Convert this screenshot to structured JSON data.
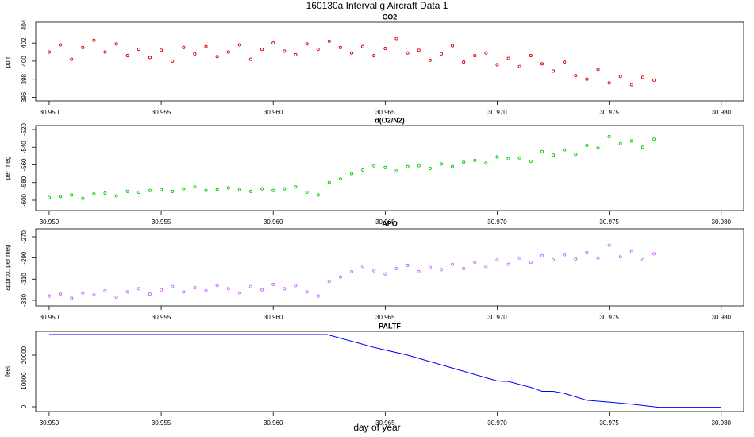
{
  "title": "160130a   Interval g Aircraft Data 1",
  "xlabel": "day of year",
  "chart_data": [
    {
      "type": "scatter",
      "title": "CO2",
      "ylabel": "ppm",
      "color": "#dd0000",
      "x": [
        30.95,
        30.9505,
        30.951,
        30.9515,
        30.952,
        30.9525,
        30.953,
        30.9535,
        30.954,
        30.9545,
        30.955,
        30.9555,
        30.956,
        30.9565,
        30.957,
        30.9575,
        30.958,
        30.9585,
        30.959,
        30.9595,
        30.96,
        30.9605,
        30.961,
        30.9615,
        30.962,
        30.9625,
        30.963,
        30.9635,
        30.964,
        30.9645,
        30.965,
        30.9655,
        30.966,
        30.9665,
        30.967,
        30.9675,
        30.968,
        30.9685,
        30.969,
        30.9695,
        30.97,
        30.9705,
        30.971,
        30.9715,
        30.972,
        30.9725,
        30.973,
        30.9735,
        30.974,
        30.9745,
        30.975,
        30.9755,
        30.976,
        30.9765,
        30.977
      ],
      "values": [
        401.0,
        401.8,
        400.2,
        401.5,
        402.3,
        401.0,
        401.9,
        400.6,
        401.3,
        400.4,
        401.2,
        400.0,
        401.5,
        400.8,
        401.6,
        400.5,
        401.0,
        401.8,
        400.2,
        401.3,
        402.0,
        401.1,
        400.7,
        401.9,
        401.3,
        402.2,
        401.5,
        400.9,
        401.6,
        400.6,
        401.4,
        402.5,
        400.9,
        401.2,
        400.1,
        400.8,
        401.7,
        399.9,
        400.6,
        400.9,
        399.6,
        400.3,
        399.4,
        400.6,
        399.7,
        398.9,
        399.9,
        398.4,
        398.0,
        399.1,
        397.6,
        398.3,
        397.4,
        398.2,
        397.9
      ],
      "xlim": [
        30.9494,
        30.981
      ],
      "ylim": [
        395.6,
        404.3
      ],
      "xticks": [
        {
          "value": 30.95,
          "label": "30.950"
        },
        {
          "value": 30.955,
          "label": "30.955"
        },
        {
          "value": 30.96,
          "label": "30.960"
        },
        {
          "value": 30.965,
          "label": "30.965"
        },
        {
          "value": 30.97,
          "label": "30.970"
        },
        {
          "value": 30.975,
          "label": "30.975"
        },
        {
          "value": 30.98,
          "label": "30.980"
        }
      ],
      "yticks": [
        396,
        398,
        400,
        402,
        404
      ]
    },
    {
      "type": "scatter",
      "title": "d(O2/N2)",
      "ylabel": "per meg",
      "color": "#00cc00",
      "x": [
        30.95,
        30.9505,
        30.951,
        30.9515,
        30.952,
        30.9525,
        30.953,
        30.9535,
        30.954,
        30.9545,
        30.955,
        30.9555,
        30.956,
        30.9565,
        30.957,
        30.9575,
        30.958,
        30.9585,
        30.959,
        30.9595,
        30.96,
        30.9605,
        30.961,
        30.9615,
        30.962,
        30.9625,
        30.963,
        30.9635,
        30.964,
        30.9645,
        30.965,
        30.9655,
        30.966,
        30.9665,
        30.967,
        30.9675,
        30.968,
        30.9685,
        30.969,
        30.9695,
        30.97,
        30.9705,
        30.971,
        30.9715,
        30.972,
        30.9725,
        30.973,
        30.9735,
        30.974,
        30.9745,
        30.975,
        30.9755,
        30.976,
        30.9765,
        30.977
      ],
      "values": [
        -597,
        -596,
        -594,
        -598,
        -593,
        -592,
        -595,
        -590,
        -591,
        -589,
        -588,
        -590,
        -587,
        -585,
        -589,
        -588,
        -586,
        -588,
        -590,
        -587,
        -589,
        -587,
        -585,
        -591,
        -594,
        -580,
        -576,
        -570,
        -566,
        -561,
        -563,
        -567,
        -562,
        -561,
        -564,
        -559,
        -562,
        -557,
        -555,
        -558,
        -551,
        -553,
        -552,
        -556,
        -545,
        -549,
        -543,
        -548,
        -538,
        -541,
        -528,
        -536,
        -533,
        -540,
        -531
      ],
      "xlim": [
        30.9494,
        30.981
      ],
      "ylim": [
        -611.7,
        -515.5
      ],
      "xticks": [
        {
          "value": 30.95,
          "label": "30.950"
        },
        {
          "value": 30.955,
          "label": "30.955"
        },
        {
          "value": 30.96,
          "label": "30.960"
        },
        {
          "value": 30.965,
          "label": "30.965"
        },
        {
          "value": 30.97,
          "label": "30.970"
        },
        {
          "value": 30.975,
          "label": "30.975"
        },
        {
          "value": 30.98,
          "label": "30.980"
        }
      ],
      "yticks": [
        -600,
        -580,
        -560,
        -540,
        -520
      ]
    },
    {
      "type": "scatter",
      "title": "APO",
      "ylabel": "approx. per meg",
      "color": "#cc66ff",
      "x": [
        30.95,
        30.9505,
        30.951,
        30.9515,
        30.952,
        30.9525,
        30.953,
        30.9535,
        30.954,
        30.9545,
        30.955,
        30.9555,
        30.956,
        30.9565,
        30.957,
        30.9575,
        30.958,
        30.9585,
        30.959,
        30.9595,
        30.96,
        30.9605,
        30.961,
        30.9615,
        30.962,
        30.9625,
        30.963,
        30.9635,
        30.964,
        30.9645,
        30.965,
        30.9655,
        30.966,
        30.9665,
        30.967,
        30.9675,
        30.968,
        30.9685,
        30.969,
        30.9695,
        30.97,
        30.9705,
        30.971,
        30.9715,
        30.972,
        30.9725,
        30.973,
        30.9735,
        30.974,
        30.9745,
        30.975,
        30.9755,
        30.976,
        30.9765,
        30.977
      ],
      "values": [
        -326,
        -324,
        -328,
        -323,
        -325,
        -321,
        -327,
        -322,
        -319,
        -324,
        -320,
        -317,
        -322,
        -318,
        -321,
        -316,
        -319,
        -323,
        -317,
        -320,
        -315,
        -319,
        -316,
        -322,
        -326,
        -312,
        -308,
        -303,
        -298,
        -302,
        -305,
        -300,
        -297,
        -303,
        -299,
        -301,
        -296,
        -300,
        -294,
        -298,
        -292,
        -296,
        -290,
        -294,
        -288,
        -292,
        -287,
        -291,
        -285,
        -290,
        -278,
        -289,
        -284,
        -292,
        -286
      ],
      "xlim": [
        30.9494,
        30.981
      ],
      "ylim": [
        -335.3,
        -262.5
      ],
      "xticks": [
        {
          "value": 30.95,
          "label": "30.950"
        },
        {
          "value": 30.955,
          "label": "30.955"
        },
        {
          "value": 30.96,
          "label": "30.960"
        },
        {
          "value": 30.965,
          "label": "30.965"
        },
        {
          "value": 30.97,
          "label": "30.970"
        },
        {
          "value": 30.975,
          "label": "30.975"
        },
        {
          "value": 30.98,
          "label": "30.980"
        }
      ],
      "yticks": [
        -330,
        -310,
        -290,
        -270
      ]
    },
    {
      "type": "line",
      "title": "PALTF",
      "ylabel": "feet",
      "color": "#0000ff",
      "x": [
        30.95,
        30.9624,
        30.9645,
        30.966,
        30.967,
        30.97,
        30.9705,
        30.9715,
        30.972,
        30.9725,
        30.973,
        30.974,
        30.975,
        30.976,
        30.9772,
        30.98
      ],
      "values": [
        28000,
        28000,
        23000,
        20000,
        17500,
        10000,
        9800,
        7500,
        6000,
        6000,
        5200,
        2500,
        1800,
        1000,
        -200,
        -200
      ],
      "xlim": [
        30.9494,
        30.981
      ],
      "ylim": [
        -1846,
        29230
      ],
      "xticks": [
        {
          "value": 30.95,
          "label": "30.950"
        },
        {
          "value": 30.955,
          "label": "30.955"
        },
        {
          "value": 30.96,
          "label": "30.960"
        },
        {
          "value": 30.965,
          "label": "30.965"
        },
        {
          "value": 30.97,
          "label": "30.970"
        },
        {
          "value": 30.975,
          "label": "30.975"
        },
        {
          "value": 30.98,
          "label": "30.980"
        }
      ],
      "yticks": [
        0,
        10000,
        20000
      ]
    }
  ]
}
